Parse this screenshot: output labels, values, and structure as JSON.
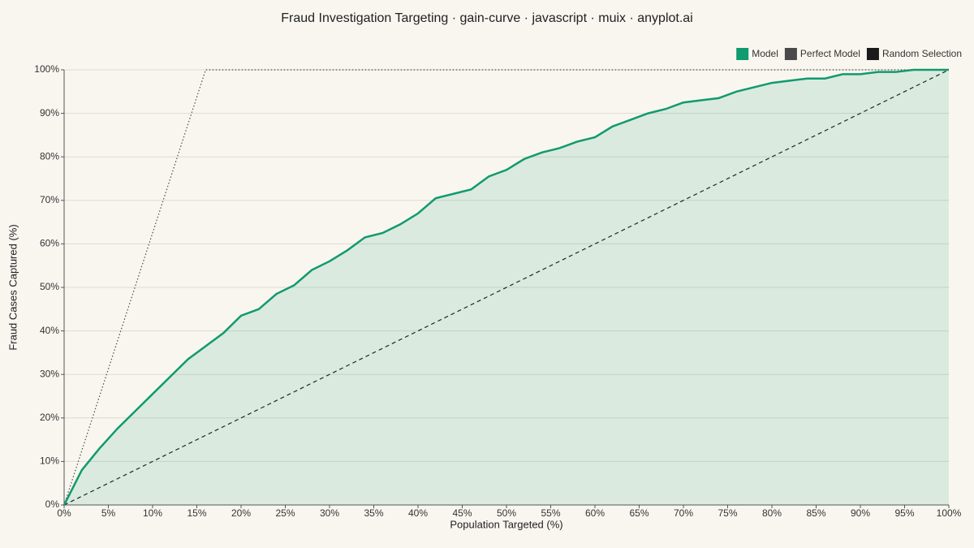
{
  "chart_data": {
    "type": "line",
    "title": "Fraud Investigation Targeting · gain-curve · javascript · muix · anyplot.ai",
    "x_label": "Population Targeted (%)",
    "y_label": "Fraud Cases Captured (%)",
    "xlim": [
      0,
      100
    ],
    "ylim": [
      0,
      100
    ],
    "xticks": [
      {
        "value": 0,
        "label": "0%"
      },
      {
        "value": 5,
        "label": "5%"
      },
      {
        "value": 10,
        "label": "10%"
      },
      {
        "value": 15,
        "label": "15%"
      },
      {
        "value": 20,
        "label": "20%"
      },
      {
        "value": 25,
        "label": "25%"
      },
      {
        "value": 30,
        "label": "30%"
      },
      {
        "value": 35,
        "label": "35%"
      },
      {
        "value": 40,
        "label": "40%"
      },
      {
        "value": 45,
        "label": "45%"
      },
      {
        "value": 50,
        "label": "50%"
      },
      {
        "value": 55,
        "label": "55%"
      },
      {
        "value": 60,
        "label": "60%"
      },
      {
        "value": 65,
        "label": "65%"
      },
      {
        "value": 70,
        "label": "70%"
      },
      {
        "value": 75,
        "label": "75%"
      },
      {
        "value": 80,
        "label": "80%"
      },
      {
        "value": 85,
        "label": "85%"
      },
      {
        "value": 90,
        "label": "90%"
      },
      {
        "value": 95,
        "label": "95%"
      },
      {
        "value": 100,
        "label": "100%"
      }
    ],
    "yticks": [
      {
        "value": 0,
        "label": "0%"
      },
      {
        "value": 10,
        "label": "10%"
      },
      {
        "value": 20,
        "label": "20%"
      },
      {
        "value": 30,
        "label": "30%"
      },
      {
        "value": 40,
        "label": "40%"
      },
      {
        "value": 50,
        "label": "50%"
      },
      {
        "value": 60,
        "label": "60%"
      },
      {
        "value": 70,
        "label": "70%"
      },
      {
        "value": 80,
        "label": "80%"
      },
      {
        "value": 90,
        "label": "90%"
      },
      {
        "value": 100,
        "label": "100%"
      }
    ],
    "grid": true,
    "legend": "top-right",
    "series": [
      {
        "name": "Model",
        "color": "#109a6f",
        "style": "solid",
        "area": true,
        "x": [
          0,
          2,
          4,
          6,
          8,
          10,
          12,
          14,
          16,
          18,
          20,
          22,
          24,
          26,
          28,
          30,
          32,
          34,
          36,
          38,
          40,
          42,
          44,
          46,
          48,
          50,
          52,
          54,
          56,
          58,
          60,
          62,
          64,
          66,
          68,
          70,
          72,
          74,
          76,
          78,
          80,
          82,
          84,
          86,
          88,
          90,
          92,
          94,
          96,
          98,
          100
        ],
        "values": [
          0,
          8,
          13,
          17.5,
          21.5,
          25.5,
          29.5,
          33.5,
          36.5,
          39.5,
          43.5,
          45,
          48.5,
          50.5,
          54,
          56,
          58.5,
          61.5,
          62.5,
          64.5,
          67,
          70.5,
          71.5,
          72.5,
          75.5,
          77,
          79.5,
          81,
          82,
          83.5,
          84.5,
          87,
          88.5,
          90,
          91,
          92.5,
          93,
          93.5,
          95,
          96,
          97,
          97.5,
          98,
          98,
          99,
          99,
          99.5,
          99.5,
          100,
          100,
          100
        ]
      },
      {
        "name": "Perfect Model",
        "color": "#4a4a4a",
        "style": "dotted",
        "x": [
          0,
          16,
          100
        ],
        "values": [
          0,
          100,
          100
        ]
      },
      {
        "name": "Random Selection",
        "color": "#1a1a1a",
        "style": "dashed",
        "x": [
          0,
          100
        ],
        "values": [
          0,
          100
        ]
      }
    ]
  }
}
